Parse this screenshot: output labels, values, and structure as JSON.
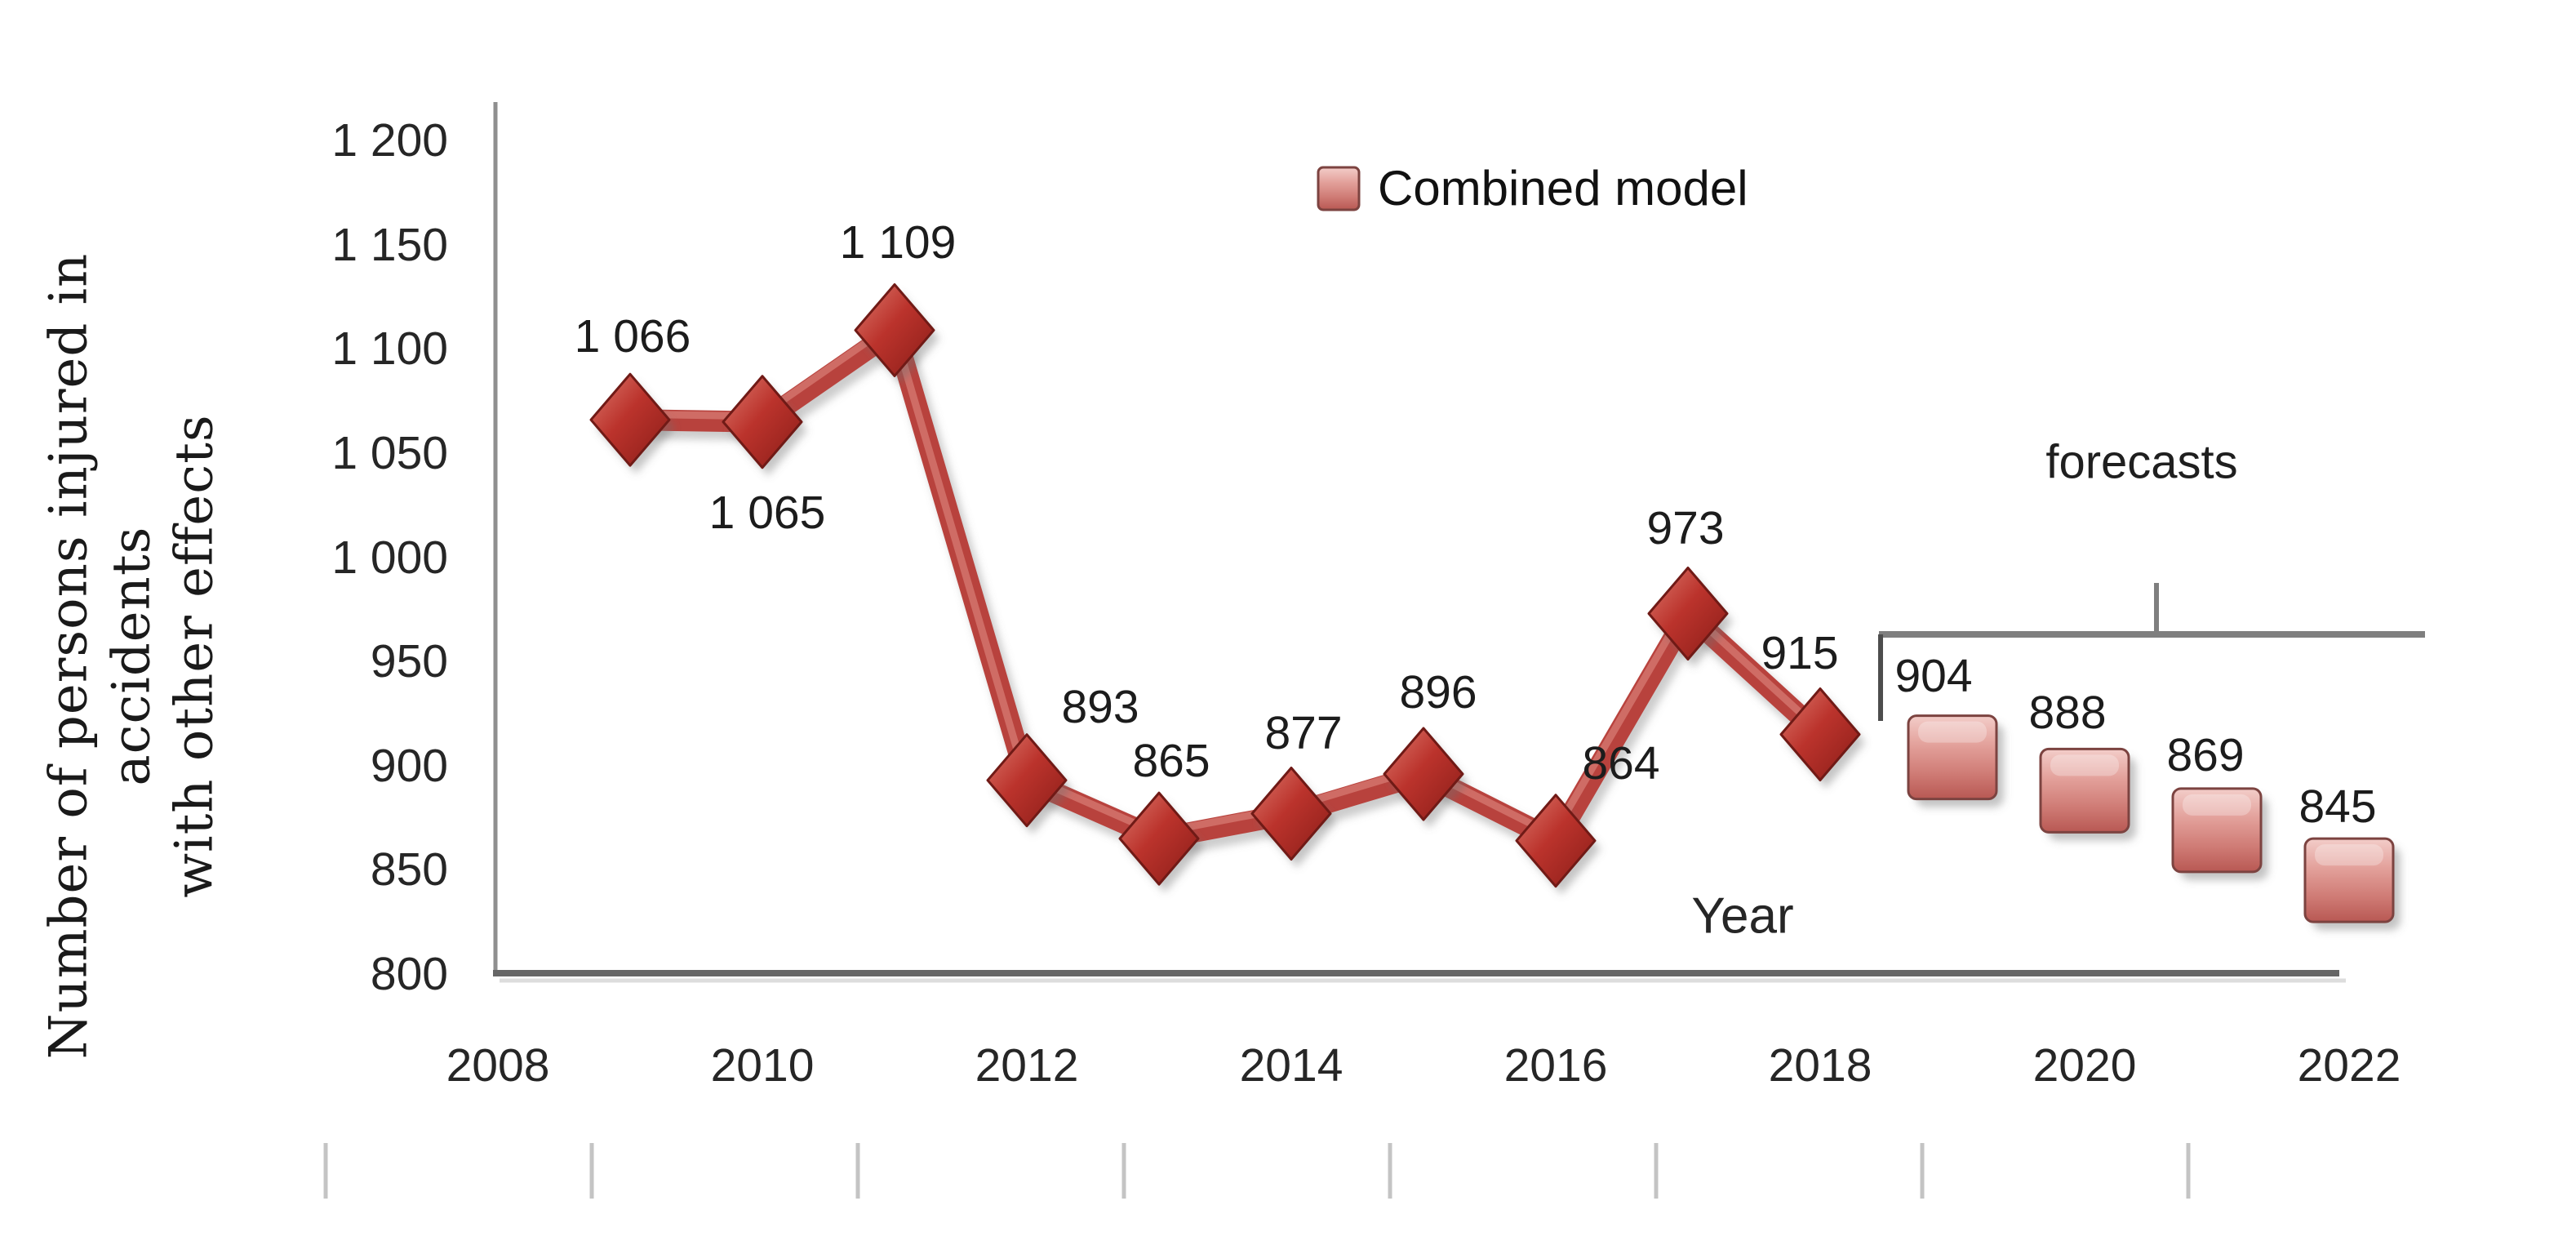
{
  "chart_data": {
    "type": "line",
    "title": "",
    "xlabel": "Year",
    "ylabel_line1": "Number of persons injured in accidents",
    "ylabel_line2": "with other effects",
    "legend": {
      "label": "Combined model",
      "position": "top-center",
      "marker": "pink-bevel-square"
    },
    "annotation": {
      "label": "forecasts",
      "covers_years": [
        2019,
        2020,
        2021,
        2022
      ]
    },
    "xlim": [
      2008,
      2022
    ],
    "ylim": [
      800,
      1200
    ],
    "grid": false,
    "y_ticks": [
      {
        "value": 1200,
        "label": "1 200"
      },
      {
        "value": 1150,
        "label": "1 150"
      },
      {
        "value": 1100,
        "label": "1 100"
      },
      {
        "value": 1050,
        "label": "1 050"
      },
      {
        "value": 1000,
        "label": "1 000"
      },
      {
        "value": 950,
        "label": "950"
      },
      {
        "value": 900,
        "label": "900"
      },
      {
        "value": 850,
        "label": "850"
      },
      {
        "value": 800,
        "label": "800"
      }
    ],
    "x_ticks": [
      {
        "value": 2008,
        "label": "2008"
      },
      {
        "value": 2010,
        "label": "2010"
      },
      {
        "value": 2012,
        "label": "2012"
      },
      {
        "value": 2014,
        "label": "2014"
      },
      {
        "value": 2016,
        "label": "2016"
      },
      {
        "value": 2018,
        "label": "2018"
      },
      {
        "value": 2020,
        "label": "2020"
      },
      {
        "value": 2022,
        "label": "2022"
      }
    ],
    "series": [
      {
        "name": "Combined model",
        "marker": "diamond",
        "render": "line-with-markers",
        "points": [
          {
            "x": 2009,
            "y": 1066,
            "label": "1 066",
            "label_dx": 3,
            "label_dy": -102
          },
          {
            "x": 2010,
            "y": 1065,
            "label": "1 065",
            "label_dx": 6,
            "label_dy": 111
          },
          {
            "x": 2011,
            "y": 1109,
            "label": "1 109",
            "label_dx": 4,
            "label_dy": -107
          },
          {
            "x": 2012,
            "y": 893,
            "label": "893",
            "label_dx": 90,
            "label_dy": -90
          },
          {
            "x": 2013,
            "y": 865,
            "label": "865",
            "label_dx": 15,
            "label_dy": -95
          },
          {
            "x": 2014,
            "y": 877,
            "label": "877",
            "label_dx": 15,
            "label_dy": -98
          },
          {
            "x": 2015,
            "y": 896,
            "label": "896",
            "label_dx": 18,
            "label_dy": -100
          },
          {
            "x": 2016,
            "y": 864,
            "label": "864",
            "label_dx": 80,
            "label_dy": -95
          },
          {
            "x": 2017,
            "y": 973,
            "label": "973",
            "label_dx": -3,
            "label_dy": -105
          },
          {
            "x": 2018,
            "y": 915,
            "label": "915",
            "label_dx": -25,
            "label_dy": -100
          }
        ]
      },
      {
        "name": "forecasts",
        "marker": "square",
        "render": "markers-only",
        "points": [
          {
            "x": 2019,
            "y": 904,
            "label": "904",
            "label_dx": -23,
            "label_dy": -100
          },
          {
            "x": 2020,
            "y": 888,
            "label": "888",
            "label_dx": -21,
            "label_dy": -95
          },
          {
            "x": 2021,
            "y": 869,
            "label": "869",
            "label_dx": -14,
            "label_dy": -92
          },
          {
            "x": 2022,
            "y": 845,
            "label": "845",
            "label_dx": -14,
            "label_dy": -90
          }
        ]
      }
    ],
    "colors": {
      "line": "#b8423d",
      "line_highlight": "rgba(235,160,150,0.45)",
      "diamond_stroke": "#701a16",
      "square_stroke": "#7c4340",
      "y_axis": "#8f8f8f",
      "x_axis": "#666666",
      "bracket": "#7f7f7f",
      "bracket_end_tick": "#4d4d4d",
      "ruler_tick": "#c4c4c4",
      "text": "#1c1c1c"
    }
  }
}
